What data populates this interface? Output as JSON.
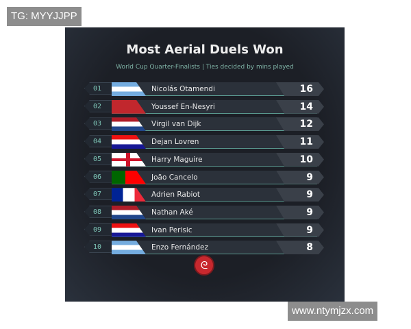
{
  "watermarks": {
    "top": "TG: MYYJJPP",
    "bottom": "www.ntymjzx.com"
  },
  "title": "Most Aerial Duels Won",
  "subtitle": "World Cup Quarter-Finalists | Ties decided by mins played",
  "rows": [
    {
      "rank": "01",
      "flag": "argentina",
      "name": "Nicolás Otamendi",
      "value": "16"
    },
    {
      "rank": "02",
      "flag": "morocco",
      "name": "Youssef En-Nesyri",
      "value": "14"
    },
    {
      "rank": "03",
      "flag": "netherlands",
      "name": "Virgil van Dijk",
      "value": "12"
    },
    {
      "rank": "04",
      "flag": "croatia",
      "name": "Dejan Lovren",
      "value": "11"
    },
    {
      "rank": "05",
      "flag": "england",
      "name": "Harry Maguire",
      "value": "10"
    },
    {
      "rank": "06",
      "flag": "portugal",
      "name": "João Cancelo",
      "value": "9"
    },
    {
      "rank": "07",
      "flag": "france",
      "name": "Adrien Rabiot",
      "value": "9"
    },
    {
      "rank": "08",
      "flag": "netherlands",
      "name": "Nathan Aké",
      "value": "9"
    },
    {
      "rank": "09",
      "flag": "croatia",
      "name": "Ivan Perisic",
      "value": "9"
    },
    {
      "rank": "10",
      "flag": "argentina",
      "name": "Enzo Fernández",
      "value": "8"
    }
  ],
  "colors": {
    "accent": "#7fc7b8",
    "logo": "#c8282e"
  }
}
